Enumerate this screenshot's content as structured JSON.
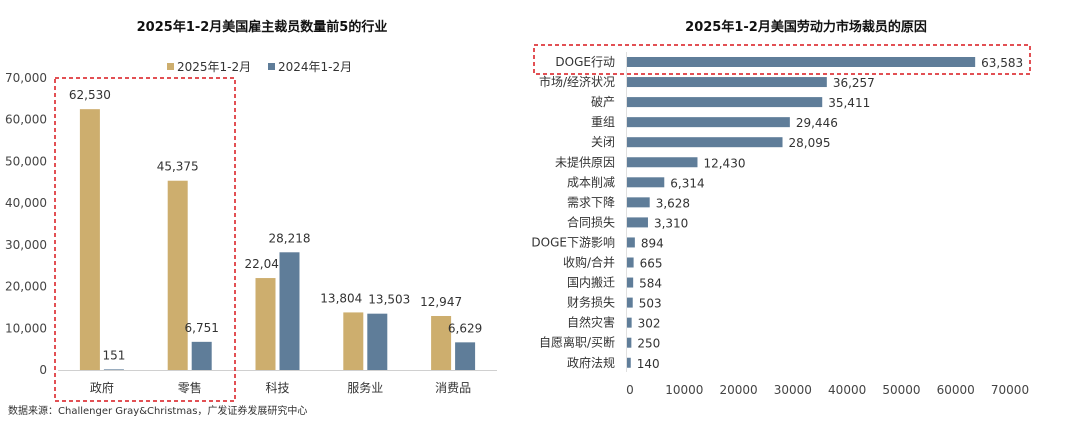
{
  "source_note": "数据来源：Challenger Gray&Christmas，广发证券发展研究中心",
  "colors": {
    "gold": "#CDAE6E",
    "blue": "#5F7D99",
    "highlight": "#D9161C"
  },
  "chart_data": [
    {
      "type": "bar",
      "orientation": "vertical",
      "title": "2025年1-2月美国雇主裁员数量前5的行业",
      "categories": [
        "政府",
        "零售",
        "科技",
        "服务业",
        "消费品"
      ],
      "series": [
        {
          "name": "2025年1-2月",
          "values": [
            62530,
            45375,
            22042,
            13804,
            12947
          ],
          "labels": [
            "62,530",
            "45,375",
            "22,042",
            "13,804",
            "12,947"
          ]
        },
        {
          "name": "2024年1-2月",
          "values": [
            151,
            6751,
            28218,
            13503,
            6629
          ],
          "labels": [
            "151",
            "6,751",
            "28,218",
            "13,503",
            "6,629"
          ]
        }
      ],
      "ylim": [
        0,
        70000
      ],
      "yticks": [
        "0",
        "10,000",
        "20,000",
        "30,000",
        "40,000",
        "50,000",
        "60,000",
        "70,000"
      ],
      "legend": "top",
      "grid": false,
      "highlighted_categories": [
        "政府",
        "零售"
      ]
    },
    {
      "type": "bar",
      "orientation": "horizontal",
      "title": "2025年1-2月美国劳动力市场裁员的原因",
      "categories": [
        "DOGE行动",
        "市场/经济状况",
        "破产",
        "重组",
        "关闭",
        "未提供原因",
        "成本削减",
        "需求下降",
        "合同损失",
        "DOGE下游影响",
        "收购/合并",
        "国内搬迁",
        "财务损失",
        "自然灾害",
        "自愿离职/买断",
        "政府法规"
      ],
      "values": [
        63583,
        36257,
        35411,
        29446,
        28095,
        12430,
        6314,
        3628,
        3310,
        894,
        665,
        584,
        503,
        302,
        250,
        140
      ],
      "labels": [
        "63,583",
        "36,257",
        "35,411",
        "29,446",
        "28,095",
        "12,430",
        "6,314",
        "3,628",
        "3,310",
        "894",
        "665",
        "584",
        "503",
        "302",
        "250",
        "140"
      ],
      "xlim": [
        0,
        70000
      ],
      "xticks": [
        "0",
        "10000",
        "20000",
        "30000",
        "40000",
        "50000",
        "60000",
        "70000"
      ],
      "grid": false,
      "highlighted_categories": [
        "DOGE行动"
      ]
    }
  ]
}
